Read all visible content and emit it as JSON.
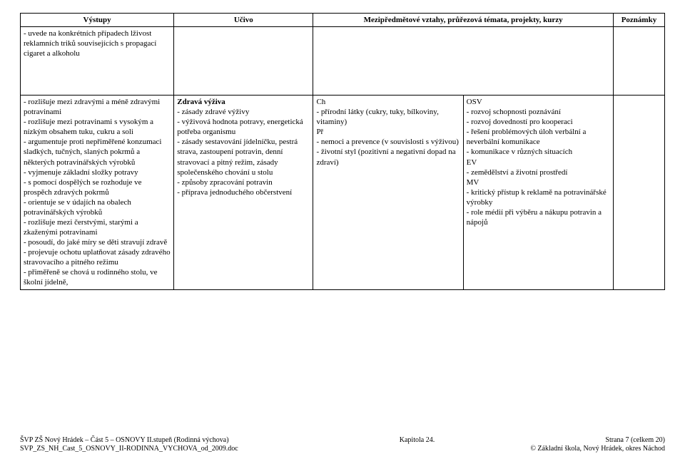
{
  "table": {
    "headers": [
      "Výstupy",
      "Učivo",
      "Mezipředmětové vztahy, průřezová témata, projekty, kurzy",
      "Poznámky"
    ],
    "row1": {
      "c1": "- uvede na konkrétních případech lživost reklamních triků souvisejících s propagací cigaret a alkoholu",
      "c2": "",
      "c3": "",
      "c4": ""
    },
    "row2": {
      "c1": "- rozlišuje mezi zdravými a méně zdravými potravinami\n- rozlišuje mezi potravinami s vysokým a nízkým obsahem tuku, cukru a soli\n- argumentuje proti nepřiměřené konzumaci sladkých, tučných, slaných pokrmů a některých potravinářských výrobků\n- vyjmenuje základní složky potravy\n- s pomocí dospělých se rozhoduje ve prospěch zdravých pokrmů\n- orientuje se v údajích na obalech potravinářských výrobků\n- rozlišuje mezi čerstvými, starými a zkaženými potravinami\n- posoudí, do jaké míry se děti stravují zdravě\n- projevuje ochotu uplatňovat zásady zdravého stravovacího a pitného režimu\n- přiměřeně se chová u rodinného stolu, ve školní jídelně,",
      "c2_title": "Zdravá výživa",
      "c2": "- zásady zdravé výživy\n- výživová hodnota potravy, energetická potřeba organismu\n- zásady sestavování jídelníčku, pestrá strava, zastoupení potravin, denní stravovací a pitný režim, zásady společenského chování u stolu\n- způsoby zpracování potravin\n- příprava jednoduchého občerstvení",
      "c3a_lbl": "Ch",
      "c3a": "- přírodní látky (cukry, tuky, bílkoviny, vitaminy)",
      "c3b_lbl": "Př",
      "c3b": "- nemoci a prevence (v souvislosti s výživou)\n- životní styl (pozitivní a negativní dopad na zdraví)",
      "c4a_lbl": "OSV",
      "c4a": "- rozvoj schopnosti poznávání\n- rozvoj dovedností pro kooperaci\n- řešení problémových úloh verbální a neverbální komunikace\n- komunikace v různých situacích",
      "c4b_lbl": "EV",
      "c4b": "- zemědělství a životní prostředí",
      "c4c_lbl": "MV",
      "c4c": "- kritický přístup k reklamě na potravinářské výrobky\n- role médií při výběru a nákupu potravin a nápojů",
      "c5": ""
    }
  },
  "footer": {
    "l1_left": "ŠVP ZŠ Nový Hrádek – Část 5 – OSNOVY II.stupeň (Rodinná výchova)",
    "l1_center": "Kapitola 24.",
    "l1_right": "Strana 7 (celkem 20)",
    "l2_left": "SVP_ZS_NH_Cast_5_OSNOVY_II-RODINNA_VYCHOVA_od_2009.doc",
    "l2_right": "© Základní škola, Nový Hrádek, okres Náchod"
  }
}
